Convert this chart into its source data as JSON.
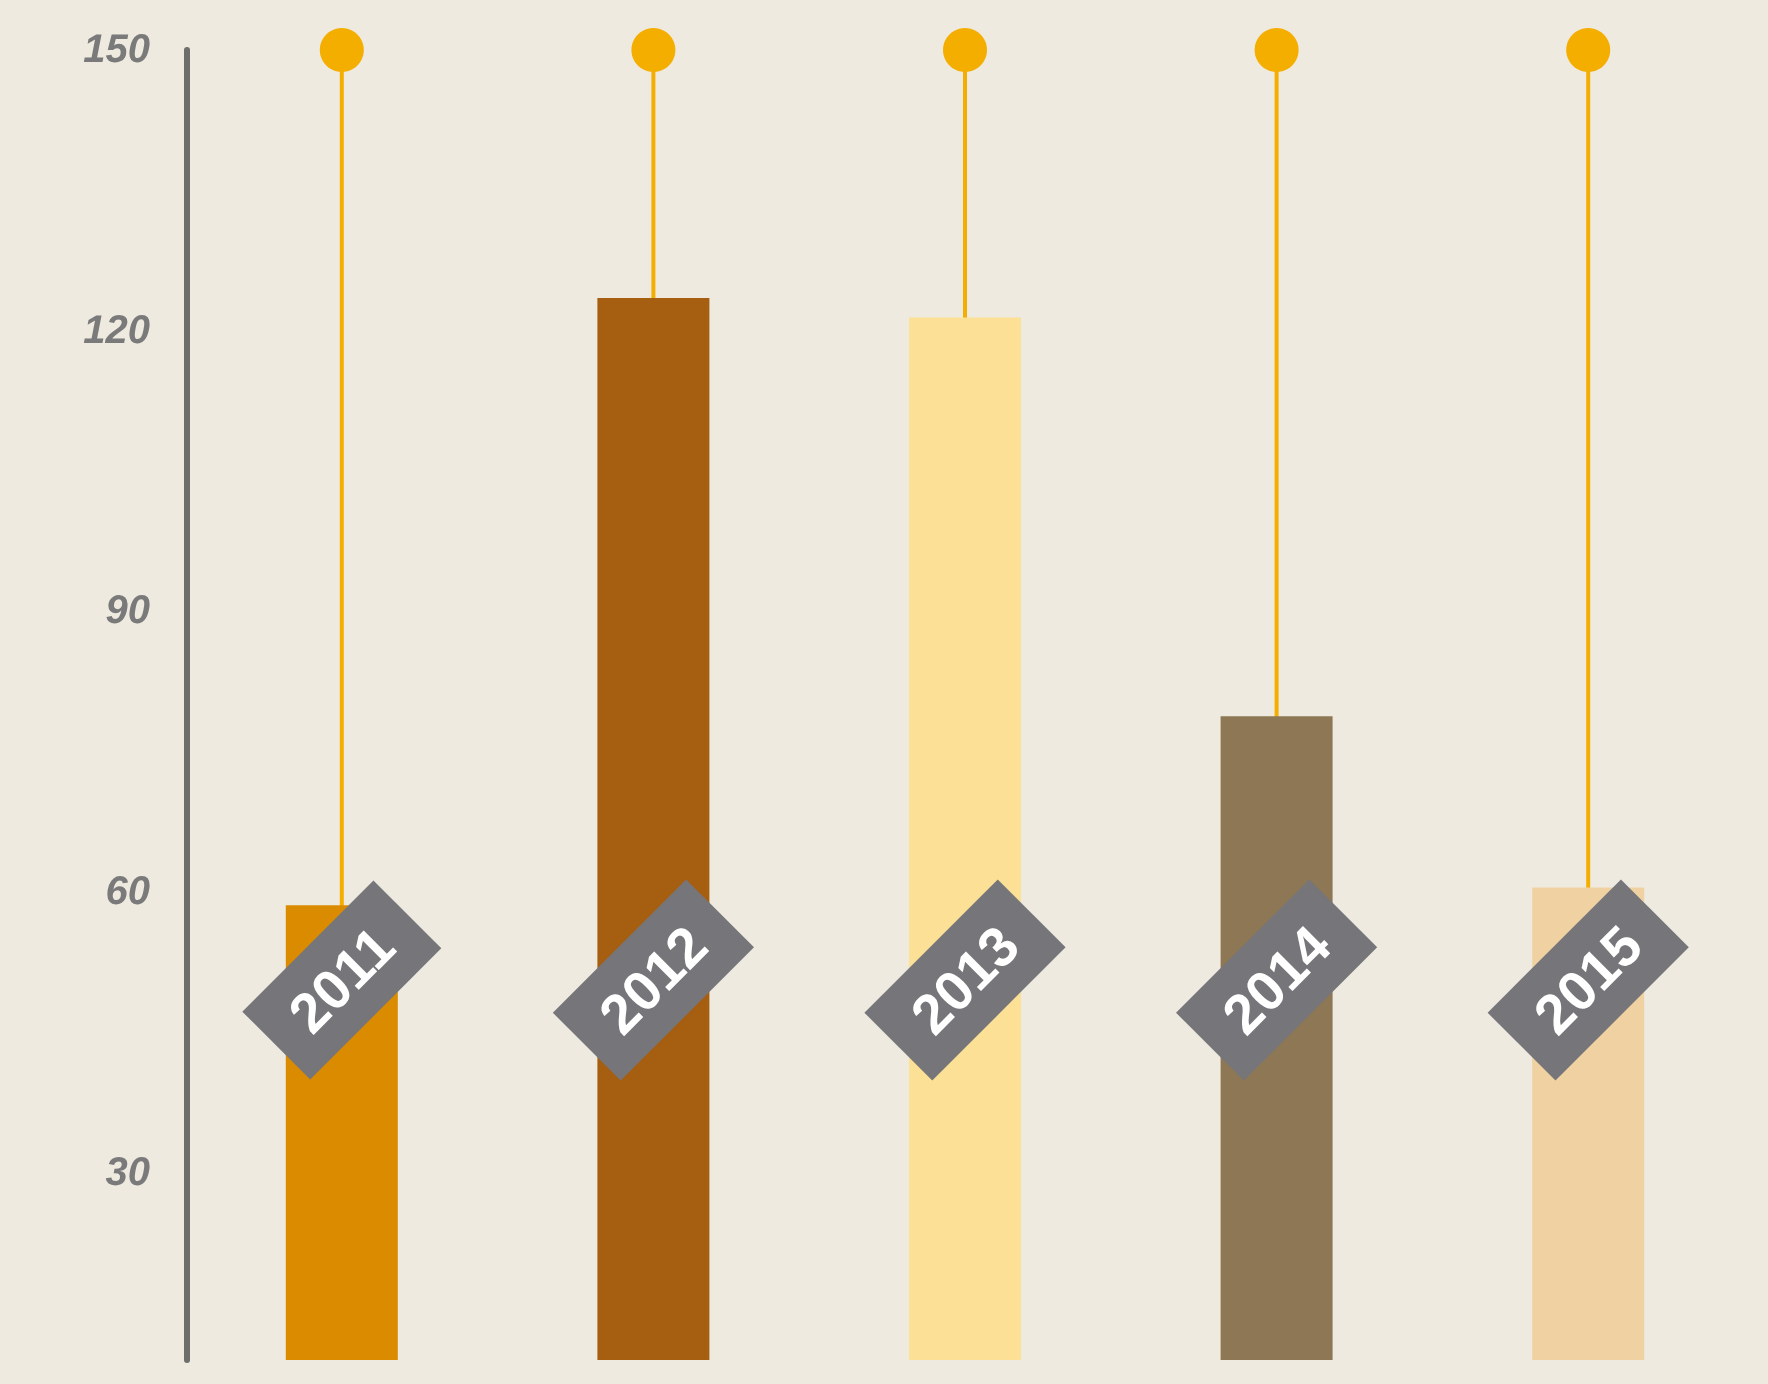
{
  "chart_data": {
    "type": "bar",
    "categories": [
      "2011",
      "2012",
      "2013",
      "2014",
      "2015"
    ],
    "series": [
      {
        "type": "lollipop",
        "color": "#f4ae00",
        "values": [
          150,
          150,
          150,
          150,
          150
        ]
      },
      {
        "colors": [
          "#db8b00",
          "#a65e10",
          "#fbe096",
          "#8e7754",
          "#f0d1a2"
        ],
        "values": [
          58.6,
          123.5,
          121.4,
          78.8,
          60.5
        ]
      }
    ],
    "ylim": [
      10,
      150
    ],
    "yticks": [
      30,
      60,
      90,
      120,
      150
    ],
    "marker": "circle"
  }
}
